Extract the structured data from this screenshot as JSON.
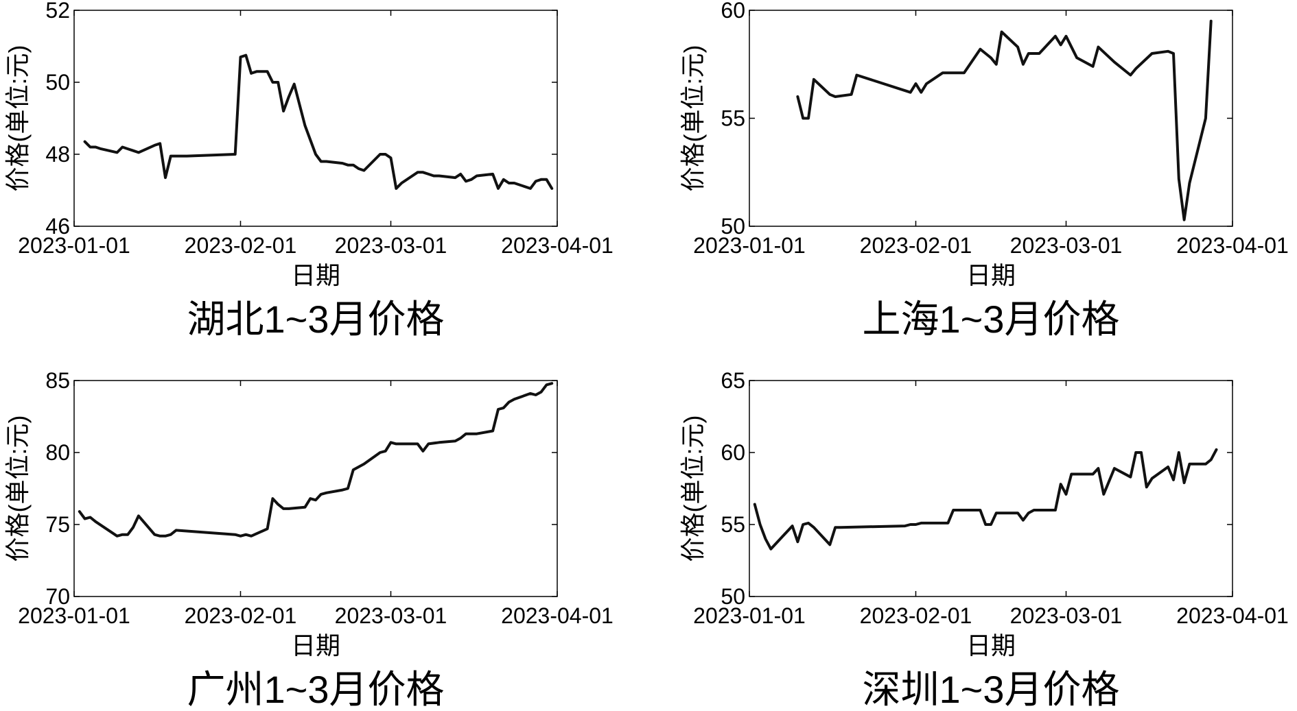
{
  "chart_data": [
    {
      "type": "line",
      "title": "湖北1~3月价格",
      "xlabel": "日期",
      "ylabel": "价格(单位:元)",
      "ylim": [
        46,
        52
      ],
      "yticks": [
        "46",
        "48",
        "50",
        "52"
      ],
      "xlim": [
        "2023-01-01",
        "2023-04-01"
      ],
      "xticks": [
        "2023-01-01",
        "2023-02-01",
        "2023-03-01",
        "2023-04-01"
      ],
      "grid": false,
      "series": [
        {
          "x": [
            "2023-01-03",
            "2023-01-04",
            "2023-01-05",
            "2023-01-06",
            "2023-01-09",
            "2023-01-10",
            "2023-01-11",
            "2023-01-12",
            "2023-01-13",
            "2023-01-16",
            "2023-01-17",
            "2023-01-18",
            "2023-01-19",
            "2023-01-20",
            "2023-01-21",
            "2023-01-22",
            "2023-01-31",
            "2023-02-01",
            "2023-02-02",
            "2023-02-03",
            "2023-02-04",
            "2023-02-06",
            "2023-02-07",
            "2023-02-08",
            "2023-02-09",
            "2023-02-10",
            "2023-02-11",
            "2023-02-13",
            "2023-02-14",
            "2023-02-15",
            "2023-02-16",
            "2023-02-17",
            "2023-02-20",
            "2023-02-21",
            "2023-02-22",
            "2023-02-23",
            "2023-02-24",
            "2023-02-27",
            "2023-02-28",
            "2023-03-01",
            "2023-03-02",
            "2023-03-03",
            "2023-03-06",
            "2023-03-07",
            "2023-03-08",
            "2023-03-09",
            "2023-03-10",
            "2023-03-13",
            "2023-03-14",
            "2023-03-15",
            "2023-03-16",
            "2023-03-17",
            "2023-03-20",
            "2023-03-21",
            "2023-03-22",
            "2023-03-23",
            "2023-03-24",
            "2023-03-27",
            "2023-03-28",
            "2023-03-29",
            "2023-03-30",
            "2023-03-31"
          ],
          "values": [
            48.35,
            48.2,
            48.2,
            48.15,
            48.05,
            48.2,
            48.15,
            48.1,
            48.05,
            48.25,
            48.3,
            47.35,
            47.95,
            47.95,
            47.95,
            47.95,
            48.0,
            50.7,
            50.75,
            50.25,
            50.3,
            50.3,
            50.0,
            50.0,
            49.2,
            49.6,
            49.95,
            48.8,
            48.4,
            48.0,
            47.8,
            47.8,
            47.75,
            47.7,
            47.7,
            47.6,
            47.55,
            48.0,
            48.0,
            47.9,
            47.05,
            47.2,
            47.5,
            47.5,
            47.45,
            47.4,
            47.4,
            47.35,
            47.45,
            47.25,
            47.3,
            47.4,
            47.45,
            47.05,
            47.3,
            47.2,
            47.2,
            47.05,
            47.25,
            47.3,
            47.3,
            47.05
          ]
        }
      ]
    },
    {
      "type": "line",
      "title": "上海1~3月价格",
      "xlabel": "日期",
      "ylabel": "价格(单位:元)",
      "ylim": [
        50,
        60
      ],
      "yticks": [
        "50",
        "55",
        "60"
      ],
      "xlim": [
        "2023-01-01",
        "2023-04-01"
      ],
      "xticks": [
        "2023-01-01",
        "2023-02-01",
        "2023-03-01",
        "2023-04-01"
      ],
      "grid": false,
      "series": [
        {
          "x": [
            "2023-01-10",
            "2023-01-11",
            "2023-01-12",
            "2023-01-13",
            "2023-01-16",
            "2023-01-17",
            "2023-01-20",
            "2023-01-21",
            "2023-01-31",
            "2023-02-01",
            "2023-02-02",
            "2023-02-03",
            "2023-02-06",
            "2023-02-07",
            "2023-02-10",
            "2023-02-13",
            "2023-02-14",
            "2023-02-15",
            "2023-02-16",
            "2023-02-17",
            "2023-02-20",
            "2023-02-21",
            "2023-02-22",
            "2023-02-23",
            "2023-02-24",
            "2023-02-27",
            "2023-02-28",
            "2023-03-01",
            "2023-03-03",
            "2023-03-06",
            "2023-03-07",
            "2023-03-10",
            "2023-03-13",
            "2023-03-14",
            "2023-03-17",
            "2023-03-20",
            "2023-03-21",
            "2023-03-22",
            "2023-03-23",
            "2023-03-24",
            "2023-03-27",
            "2023-03-28"
          ],
          "values": [
            56.0,
            55.0,
            55.0,
            56.8,
            56.1,
            56.0,
            56.1,
            57.0,
            56.2,
            56.6,
            56.2,
            56.6,
            57.1,
            57.1,
            57.1,
            58.2,
            58.0,
            57.8,
            57.5,
            59.0,
            58.3,
            57.5,
            58.0,
            58.0,
            58.0,
            58.8,
            58.4,
            58.8,
            57.8,
            57.4,
            58.3,
            57.6,
            57.0,
            57.3,
            58.0,
            58.1,
            58.0,
            52.2,
            50.3,
            52.0,
            55.0,
            59.5
          ]
        }
      ]
    },
    {
      "type": "line",
      "title": "广州1~3月价格",
      "xlabel": "日期",
      "ylabel": "价格(单位:元)",
      "ylim": [
        70,
        85
      ],
      "yticks": [
        "70",
        "75",
        "80",
        "85"
      ],
      "xlim": [
        "2023-01-01",
        "2023-04-01"
      ],
      "xticks": [
        "2023-01-01",
        "2023-02-01",
        "2023-03-01",
        "2023-04-01"
      ],
      "grid": false,
      "series": [
        {
          "x": [
            "2023-01-02",
            "2023-01-03",
            "2023-01-04",
            "2023-01-05",
            "2023-01-09",
            "2023-01-10",
            "2023-01-11",
            "2023-01-12",
            "2023-01-13",
            "2023-01-16",
            "2023-01-17",
            "2023-01-18",
            "2023-01-19",
            "2023-01-20",
            "2023-01-31",
            "2023-02-01",
            "2023-02-02",
            "2023-02-03",
            "2023-02-06",
            "2023-02-07",
            "2023-02-08",
            "2023-02-09",
            "2023-02-10",
            "2023-02-13",
            "2023-02-14",
            "2023-02-15",
            "2023-02-16",
            "2023-02-17",
            "2023-02-20",
            "2023-02-21",
            "2023-02-22",
            "2023-02-23",
            "2023-02-24",
            "2023-02-27",
            "2023-02-28",
            "2023-03-01",
            "2023-03-02",
            "2023-03-06",
            "2023-03-07",
            "2023-03-08",
            "2023-03-10",
            "2023-03-13",
            "2023-03-14",
            "2023-03-15",
            "2023-03-16",
            "2023-03-17",
            "2023-03-20",
            "2023-03-21",
            "2023-03-22",
            "2023-03-23",
            "2023-03-24",
            "2023-03-27",
            "2023-03-28",
            "2023-03-29",
            "2023-03-30",
            "2023-03-31"
          ],
          "values": [
            75.9,
            75.4,
            75.5,
            75.2,
            74.2,
            74.3,
            74.3,
            74.8,
            75.6,
            74.3,
            74.2,
            74.2,
            74.3,
            74.6,
            74.3,
            74.2,
            74.3,
            74.2,
            74.7,
            76.8,
            76.4,
            76.1,
            76.1,
            76.2,
            76.8,
            76.7,
            77.1,
            77.2,
            77.4,
            77.5,
            78.8,
            79.0,
            79.2,
            80.0,
            80.1,
            80.7,
            80.6,
            80.6,
            80.1,
            80.6,
            80.7,
            80.8,
            81.0,
            81.3,
            81.3,
            81.3,
            81.5,
            83.0,
            83.1,
            83.5,
            83.7,
            84.1,
            84.0,
            84.2,
            84.7,
            84.8
          ]
        }
      ]
    },
    {
      "type": "line",
      "title": "深圳1~3月价格",
      "xlabel": "日期",
      "ylabel": "价格(单位:元)",
      "ylim": [
        50,
        65
      ],
      "yticks": [
        "50",
        "55",
        "60",
        "65"
      ],
      "xlim": [
        "2023-01-01",
        "2023-04-01"
      ],
      "xticks": [
        "2023-01-01",
        "2023-02-01",
        "2023-03-01",
        "2023-04-01"
      ],
      "grid": false,
      "series": [
        {
          "x": [
            "2023-01-02",
            "2023-01-03",
            "2023-01-04",
            "2023-01-05",
            "2023-01-09",
            "2023-01-10",
            "2023-01-11",
            "2023-01-12",
            "2023-01-13",
            "2023-01-16",
            "2023-01-17",
            "2023-01-18",
            "2023-01-30",
            "2023-01-31",
            "2023-02-01",
            "2023-02-02",
            "2023-02-03",
            "2023-02-06",
            "2023-02-07",
            "2023-02-08",
            "2023-02-09",
            "2023-02-10",
            "2023-02-13",
            "2023-02-14",
            "2023-02-15",
            "2023-02-16",
            "2023-02-17",
            "2023-02-20",
            "2023-02-21",
            "2023-02-22",
            "2023-02-23",
            "2023-02-24",
            "2023-02-27",
            "2023-02-28",
            "2023-03-01",
            "2023-03-02",
            "2023-03-03",
            "2023-03-06",
            "2023-03-07",
            "2023-03-08",
            "2023-03-09",
            "2023-03-10",
            "2023-03-13",
            "2023-03-14",
            "2023-03-15",
            "2023-03-16",
            "2023-03-17",
            "2023-03-20",
            "2023-03-21",
            "2023-03-22",
            "2023-03-23",
            "2023-03-24",
            "2023-03-27",
            "2023-03-28",
            "2023-03-29"
          ],
          "values": [
            56.4,
            55.0,
            54.0,
            53.3,
            54.9,
            53.8,
            55.0,
            55.1,
            54.8,
            53.6,
            54.8,
            54.8,
            54.9,
            55.0,
            55.0,
            55.1,
            55.1,
            55.1,
            55.1,
            56.0,
            56.0,
            56.0,
            56.0,
            55.0,
            55.0,
            55.8,
            55.8,
            55.8,
            55.3,
            55.8,
            56.0,
            56.0,
            56.0,
            57.8,
            57.1,
            58.5,
            58.5,
            58.5,
            58.9,
            57.1,
            58.0,
            58.9,
            58.3,
            60.0,
            60.0,
            57.6,
            58.2,
            59.0,
            58.1,
            60.0,
            57.9,
            59.2,
            59.2,
            59.5,
            60.2
          ]
        }
      ]
    }
  ]
}
